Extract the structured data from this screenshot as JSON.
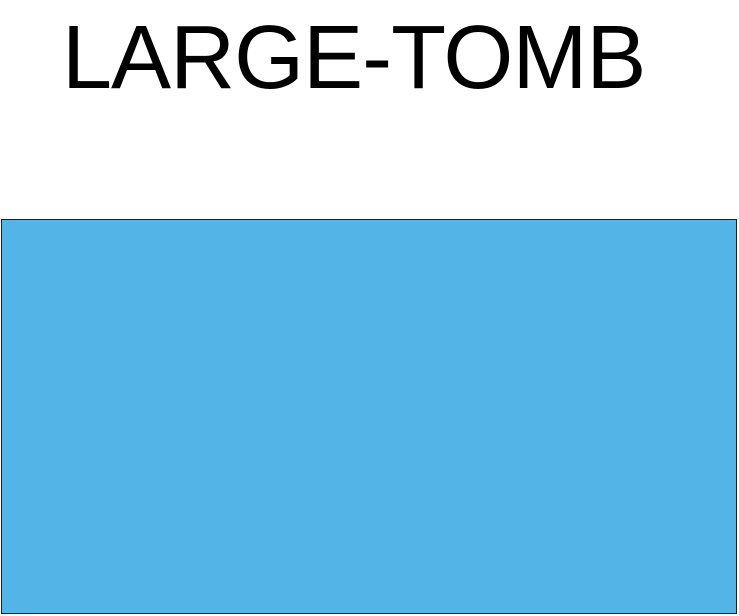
{
  "title": "LARGE-TOMB",
  "shape": {
    "fill_color": "#53b5e7",
    "stroke_color": "#1f1f1f"
  }
}
